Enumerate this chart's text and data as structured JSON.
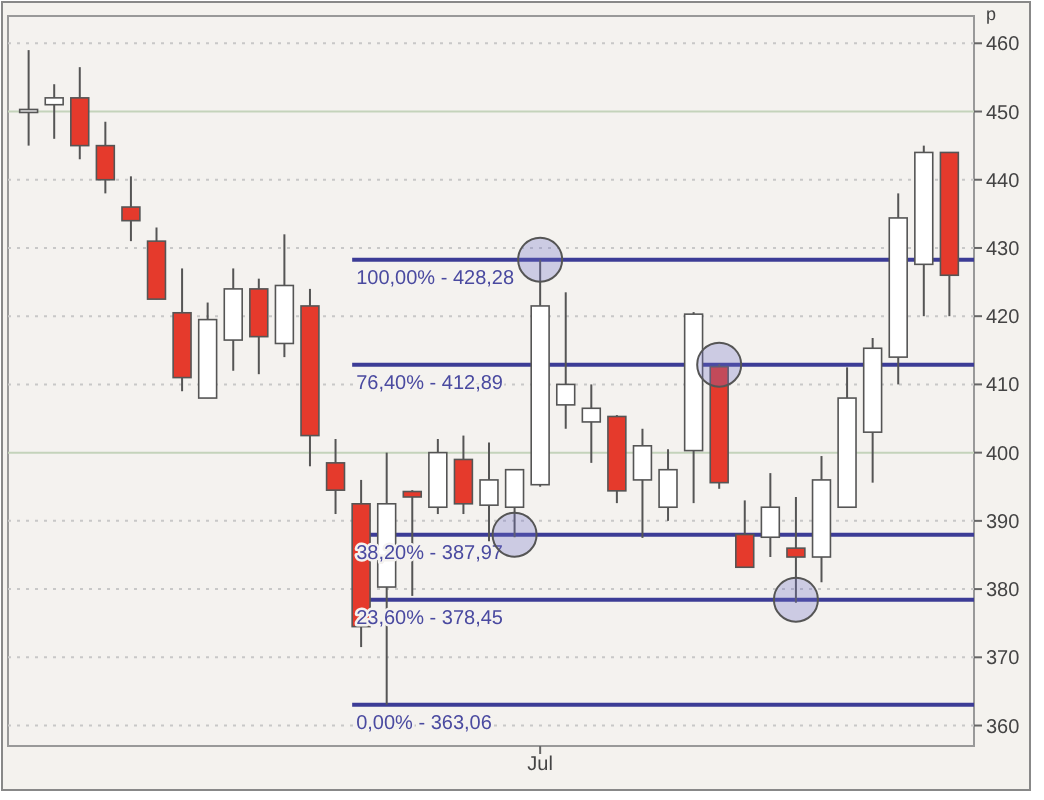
{
  "chart_data": {
    "type": "candlestick",
    "ylabel": "p",
    "categories": [
      null,
      null,
      null,
      null,
      null,
      null,
      null,
      null,
      null,
      null,
      null,
      null,
      null,
      null,
      null,
      null,
      null,
      null,
      null,
      null,
      "Jul",
      null,
      null,
      null,
      null,
      null,
      null,
      null,
      null,
      null,
      null,
      null,
      null,
      null,
      null,
      null,
      null
    ],
    "ohlc": [
      [
        450.3,
        459,
        445,
        450
      ],
      [
        451,
        454,
        446,
        452
      ],
      [
        452,
        456.5,
        443,
        445
      ],
      [
        445,
        448.5,
        438,
        440
      ],
      [
        436,
        440.5,
        431,
        434
      ],
      [
        431,
        433,
        422.5,
        422.5
      ],
      [
        420.5,
        427,
        409,
        411
      ],
      [
        408,
        422,
        408,
        419.5
      ],
      [
        416.5,
        427,
        412,
        424
      ],
      [
        424,
        425.5,
        411.5,
        417
      ],
      [
        416,
        432,
        414,
        424.5
      ],
      [
        421.5,
        424,
        398,
        402.5
      ],
      [
        398.5,
        402,
        391,
        394.5
      ],
      [
        392.5,
        396,
        371.5,
        374.5
      ],
      [
        380.3,
        400,
        363.06,
        392.5
      ],
      [
        394.3,
        394.5,
        379,
        393.5
      ],
      [
        392,
        402,
        391,
        400
      ],
      [
        399,
        402.5,
        391,
        392.5
      ],
      [
        392.3,
        401.5,
        387,
        396
      ],
      [
        392,
        397.6,
        387.6,
        397.5
      ],
      [
        395.3,
        428.28,
        395,
        421.5
      ],
      [
        407,
        423.5,
        403.5,
        410
      ],
      [
        404.5,
        410,
        398.5,
        406.5
      ],
      [
        405.3,
        405.5,
        392.6,
        394.4
      ],
      [
        396,
        403.5,
        387.5,
        401
      ],
      [
        392,
        400.5,
        390,
        397.5
      ],
      [
        400.3,
        420.6,
        392.6,
        420.3
      ],
      [
        412.6,
        413,
        394.7,
        395.6
      ],
      [
        388,
        393,
        383.2,
        383.2
      ],
      [
        387.6,
        397,
        384.7,
        392
      ],
      [
        386,
        393.5,
        378,
        384.7
      ],
      [
        384.7,
        399.5,
        381,
        396
      ],
      [
        392,
        412.5,
        392,
        408
      ],
      [
        403,
        416.8,
        395.6,
        415.3
      ],
      [
        414,
        438,
        410,
        434.4
      ],
      [
        427.6,
        445,
        420,
        444
      ],
      [
        444,
        444,
        420,
        426
      ]
    ],
    "colors": [
      "#e8e8e8",
      "#ffffff",
      "#e53a2c",
      "#e53a2c",
      "#e53a2c",
      "#e53a2c",
      "#e53a2c",
      "#ffffff",
      "#ffffff",
      "#e53a2c",
      "#ffffff",
      "#e53a2c",
      "#e53a2c",
      "#e53a2c",
      "#ffffff",
      "#e53a2c",
      "#ffffff",
      "#e53a2c",
      "#ffffff",
      "#ffffff",
      "#ffffff",
      "#ffffff",
      "#ffffff",
      "#e53a2c",
      "#ffffff",
      "#ffffff",
      "#ffffff",
      "#e53a2c",
      "#e53a2c",
      "#ffffff",
      "#e53a2c",
      "#ffffff",
      "#ffffff",
      "#ffffff",
      "#ffffff",
      "#ffffff",
      "#e53a2c"
    ],
    "ylim": [
      357,
      464
    ],
    "yticks": [
      360,
      370,
      380,
      390,
      400,
      410,
      420,
      430,
      440,
      450,
      460
    ],
    "grid": "y",
    "ref_lines": [
      {
        "axis": "y",
        "value": 428.28,
        "color": "#3c3c96"
      },
      {
        "axis": "y",
        "value": 412.89,
        "color": "#3c3c96"
      },
      {
        "axis": "y",
        "value": 387.97,
        "color": "#3c3c96"
      },
      {
        "axis": "y",
        "value": 378.45,
        "color": "#3c3c96"
      },
      {
        "axis": "y",
        "value": 363.06,
        "color": "#3c3c96"
      }
    ],
    "annotations": [
      {
        "text": "100,00% - 428,28",
        "y": 428.28
      },
      {
        "text": "76,40% - 412,89",
        "y": 412.89
      },
      {
        "text": "38,20% - 387,97",
        "y": 387.97
      },
      {
        "text": "23,60% - 378,45",
        "y": 378.45
      },
      {
        "text": "0,00% - 363,06",
        "y": 363.06
      }
    ]
  }
}
